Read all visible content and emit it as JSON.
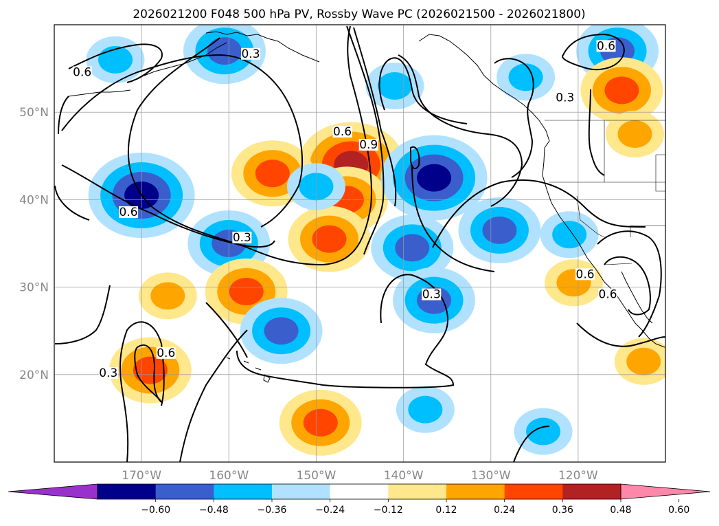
{
  "chart_data": {
    "type": "heatmap",
    "title": "2026021200 F048 500 hPa PV, Rossby Wave PC (2026021500 - 2026021800)",
    "map": {
      "lon_range": [
        -180,
        -110
      ],
      "lat_range": [
        10,
        60
      ],
      "lon_ticks": [
        {
          "lon": -170,
          "label": "170°W"
        },
        {
          "lon": -160,
          "label": "160°W"
        },
        {
          "lon": -150,
          "label": "150°W"
        },
        {
          "lon": -140,
          "label": "140°W"
        },
        {
          "lon": -130,
          "label": "130°W"
        },
        {
          "lon": -120,
          "label": "120°W"
        }
      ],
      "lat_ticks": [
        {
          "lat": 50,
          "label": "50°N"
        },
        {
          "lat": 40,
          "label": "40°N"
        },
        {
          "lat": 30,
          "label": "30°N"
        },
        {
          "lat": 20,
          "label": "20°N"
        }
      ],
      "grid": true
    },
    "colorbar": {
      "extend": "both",
      "levels": [
        -0.6,
        -0.48,
        -0.36,
        -0.24,
        -0.12,
        0.12,
        0.24,
        0.36,
        0.48,
        0.6
      ],
      "tick_labels": [
        "−0.60",
        "−0.48",
        "−0.36",
        "−0.24",
        "−0.12",
        "0.12",
        "0.24",
        "0.36",
        "0.48",
        "0.60"
      ],
      "colors": [
        "#9932cc",
        "#00008b",
        "#3a5fcd",
        "#00bfff",
        "#b0e2ff",
        "#ffffff",
        "#ffe78c",
        "#ffa500",
        "#ff4500",
        "#b22222",
        "#ff88aa"
      ]
    },
    "anomalies": [
      {
        "lon": -146,
        "lat": 44,
        "value": 0.55
      },
      {
        "lon": -146.5,
        "lat": 40,
        "value": 0.45
      },
      {
        "lon": -148.5,
        "lat": 35.5,
        "value": 0.4
      },
      {
        "lon": -136.5,
        "lat": 42.5,
        "value": -0.55
      },
      {
        "lon": -139,
        "lat": 34.5,
        "value": -0.45
      },
      {
        "lon": -129,
        "lat": 36.5,
        "value": -0.38
      },
      {
        "lon": -170,
        "lat": 40.5,
        "value": -0.52
      },
      {
        "lon": -160,
        "lat": 35,
        "value": -0.36
      },
      {
        "lon": -155,
        "lat": 43,
        "value": 0.38
      },
      {
        "lon": -158,
        "lat": 29.5,
        "value": 0.38
      },
      {
        "lon": -167,
        "lat": 29,
        "value": 0.3
      },
      {
        "lon": -136.5,
        "lat": 28.5,
        "value": -0.38
      },
      {
        "lon": -154,
        "lat": 25,
        "value": -0.36
      },
      {
        "lon": -160.5,
        "lat": 57,
        "value": -0.36
      },
      {
        "lon": -173,
        "lat": 56,
        "value": -0.24
      },
      {
        "lon": -115.5,
        "lat": 57,
        "value": -0.36
      },
      {
        "lon": -141,
        "lat": 53,
        "value": -0.24
      },
      {
        "lon": -150,
        "lat": 41.5,
        "value": -0.24
      },
      {
        "lon": -149.5,
        "lat": 14.5,
        "value": 0.4
      },
      {
        "lon": -169,
        "lat": 20.5,
        "value": 0.38
      },
      {
        "lon": -115,
        "lat": 52.5,
        "value": 0.36
      },
      {
        "lon": -113.5,
        "lat": 47.5,
        "value": 0.32
      },
      {
        "lon": -112.5,
        "lat": 21.5,
        "value": 0.32
      },
      {
        "lon": -121,
        "lat": 36,
        "value": -0.24
      },
      {
        "lon": -124,
        "lat": 13.5,
        "value": -0.24
      },
      {
        "lon": -126,
        "lat": 54,
        "value": -0.24
      },
      {
        "lon": -137.5,
        "lat": 16,
        "value": -0.24
      },
      {
        "lon": -120.5,
        "lat": 30.5,
        "value": 0.3
      }
    ],
    "contour_labels": [
      {
        "text": "0.3",
        "lon": -158.5,
        "lat": 35.4
      },
      {
        "text": "0.6",
        "lon": -171.5,
        "lat": 38.3
      },
      {
        "text": "0.6",
        "lon": -147,
        "lat": 47.5
      },
      {
        "text": "0.9",
        "lon": -144,
        "lat": 46
      },
      {
        "text": "0.6",
        "lon": -176.8,
        "lat": 54.3
      },
      {
        "text": "0.3",
        "lon": -157.5,
        "lat": 56.4
      },
      {
        "text": "0.3",
        "lon": -121.5,
        "lat": 51.4
      },
      {
        "text": "0.6",
        "lon": -116.8,
        "lat": 57.3
      },
      {
        "text": "0.3",
        "lon": -136.8,
        "lat": 28.9
      },
      {
        "text": "0.6",
        "lon": -119.2,
        "lat": 31.2
      },
      {
        "text": "0.6",
        "lon": -116.6,
        "lat": 28.9
      },
      {
        "text": "0.3",
        "lon": -173.8,
        "lat": 19.9
      },
      {
        "text": "0.6",
        "lon": -167.2,
        "lat": 22.2
      }
    ]
  }
}
